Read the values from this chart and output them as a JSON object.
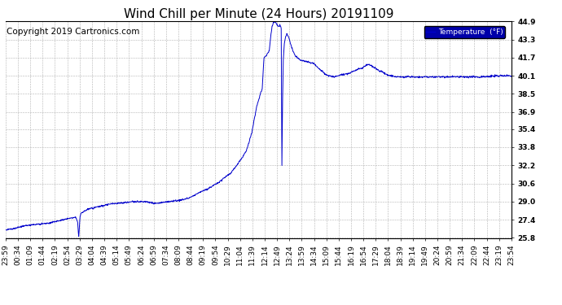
{
  "title": "Wind Chill per Minute (24 Hours) 20191109",
  "copyright_text": "Copyright 2019 Cartronics.com",
  "legend_label": "Temperature  (°F)",
  "line_color": "#0000cc",
  "background_color": "#ffffff",
  "plot_bg_color": "#ffffff",
  "grid_color": "#aaaaaa",
  "legend_bg": "#0000aa",
  "legend_text_color": "#ffffff",
  "ylim": [
    25.8,
    44.9
  ],
  "yticks": [
    25.8,
    27.4,
    29.0,
    30.6,
    32.2,
    33.8,
    35.4,
    36.9,
    38.5,
    40.1,
    41.7,
    43.3,
    44.9
  ],
  "xtick_labels": [
    "23:59",
    "00:34",
    "01:09",
    "01:44",
    "02:19",
    "02:54",
    "03:29",
    "04:04",
    "04:39",
    "05:14",
    "05:49",
    "06:24",
    "06:59",
    "07:34",
    "08:09",
    "08:44",
    "09:19",
    "09:54",
    "10:29",
    "11:04",
    "11:39",
    "12:14",
    "12:49",
    "13:24",
    "13:59",
    "14:34",
    "15:09",
    "15:44",
    "16:19",
    "16:54",
    "17:29",
    "18:04",
    "18:39",
    "19:14",
    "19:49",
    "20:24",
    "20:59",
    "21:34",
    "22:09",
    "22:44",
    "23:19",
    "23:54"
  ],
  "title_fontsize": 11,
  "tick_fontsize": 6.5,
  "copyright_fontsize": 7.5
}
